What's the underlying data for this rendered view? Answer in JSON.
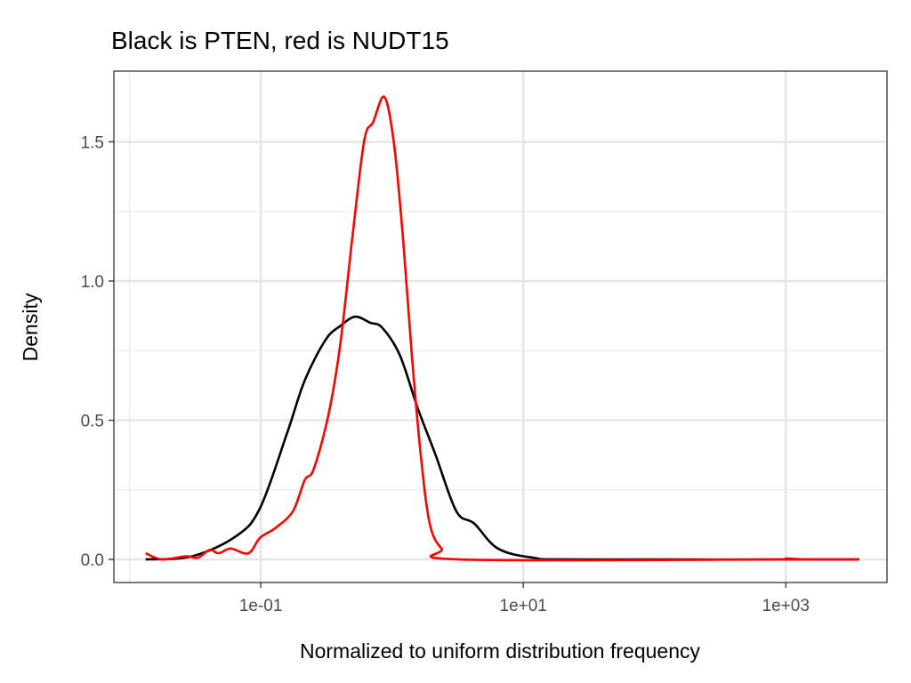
{
  "chart_data": {
    "type": "line",
    "title": "Black is PTEN, red is NUDT15",
    "xlabel": "Normalized to uniform distribution frequency",
    "ylabel": "Density",
    "x_scale": "log10",
    "xlim": [
      0.0076,
      5900
    ],
    "ylim": [
      -0.083,
      1.754
    ],
    "x_ticks": [
      0.1,
      10,
      1000
    ],
    "x_tick_labels": [
      "1e-01",
      "1e+01",
      "1e+03"
    ],
    "y_ticks": [
      0,
      0.5,
      1,
      1.5
    ],
    "y_tick_labels": [
      "0.0",
      "0.5",
      "1.0",
      "1.5"
    ],
    "grid": true,
    "theme": "bw",
    "series": [
      {
        "color": "#000000",
        "x_log10": [
          -1.877,
          -1.525,
          -1.186,
          -1.005,
          -0.8,
          -0.665,
          -0.506,
          -0.393,
          -0.28,
          -0.166,
          -0.076,
          0.06,
          0.196,
          0.332,
          0.49,
          0.626,
          0.807,
          1.08,
          1.42,
          3.56
        ],
        "y": [
          0,
          0.011,
          0.084,
          0.185,
          0.453,
          0.643,
          0.789,
          0.839,
          0.872,
          0.85,
          0.833,
          0.733,
          0.543,
          0.375,
          0.173,
          0.129,
          0.039,
          0.006,
          0,
          0
        ]
      },
      {
        "color": "#ff0000",
        "x_log10": [
          -1.877,
          -1.752,
          -1.571,
          -1.48,
          -1.39,
          -1.32,
          -1.23,
          -1.095,
          -1.005,
          -0.891,
          -0.755,
          -0.665,
          -0.597,
          -0.484,
          -0.393,
          -0.302,
          -0.212,
          -0.144,
          -0.058,
          0.015,
          0.083,
          0.151,
          0.219,
          0.287,
          0.377,
          0.513,
          2.9,
          3.0,
          3.1,
          3.56
        ],
        "y": [
          0.022,
          0,
          0.011,
          0.006,
          0.034,
          0.022,
          0.039,
          0.022,
          0.078,
          0.112,
          0.173,
          0.285,
          0.324,
          0.52,
          0.777,
          1.158,
          1.504,
          1.571,
          1.661,
          1.493,
          1.158,
          0.733,
          0.375,
          0.129,
          0.039,
          0,
          0,
          0.003,
          0,
          0
        ]
      }
    ]
  }
}
